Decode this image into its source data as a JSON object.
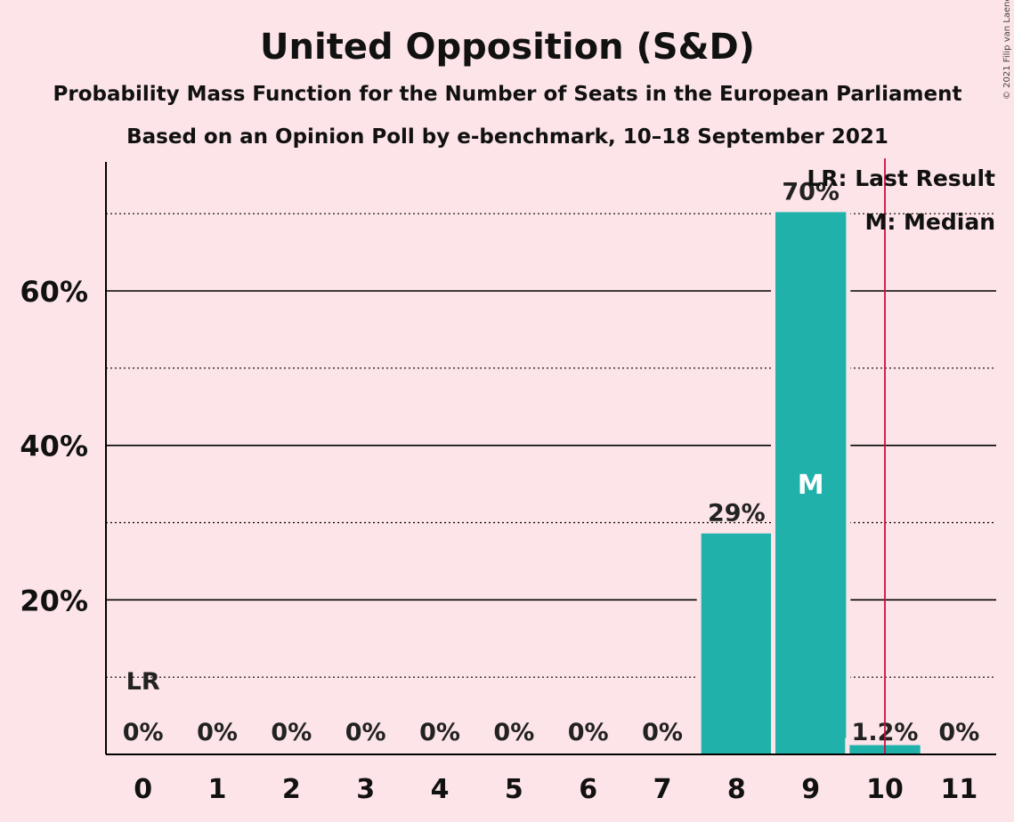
{
  "chart_data": {
    "type": "bar",
    "title": "United Opposition (S&D)",
    "subtitle_1": "Probability Mass Function for the Number of Seats in the European Parliament",
    "subtitle_2": "Based on an Opinion Poll by e-benchmark, 10–18 September 2021",
    "copyright": "© 2021 Filip van Laenen",
    "categories": [
      "0",
      "1",
      "2",
      "3",
      "4",
      "5",
      "6",
      "7",
      "8",
      "9",
      "10",
      "11"
    ],
    "values": [
      0,
      0,
      0,
      0,
      0,
      0,
      0,
      0,
      28.6,
      70.2,
      1.2,
      0
    ],
    "value_labels": [
      "0%",
      "0%",
      "0%",
      "0%",
      "0%",
      "0%",
      "0%",
      "0%",
      "29%",
      "70%",
      "1.2%",
      "0%"
    ],
    "y_ticks": [
      {
        "value": 20,
        "label": "20%"
      },
      {
        "value": 40,
        "label": "40%"
      },
      {
        "value": 60,
        "label": "60%"
      }
    ],
    "y_minor_gridlines": [
      10,
      30,
      50,
      70
    ],
    "ylim": [
      0,
      77
    ],
    "last_result_seat": 10.5,
    "lr_marker": {
      "category": "0",
      "label": "LR",
      "value": 10
    },
    "median_category": "9",
    "median_label": "M",
    "legend": {
      "placement": "top-right",
      "items": [
        "LR: Last Result",
        "M: Median"
      ]
    },
    "colors": {
      "background": "#fce4e8",
      "bar": "#20b2aa",
      "last_result_line": "#c8103c",
      "grid": "#000000",
      "median_text": "#ffffff"
    },
    "grid": true
  }
}
